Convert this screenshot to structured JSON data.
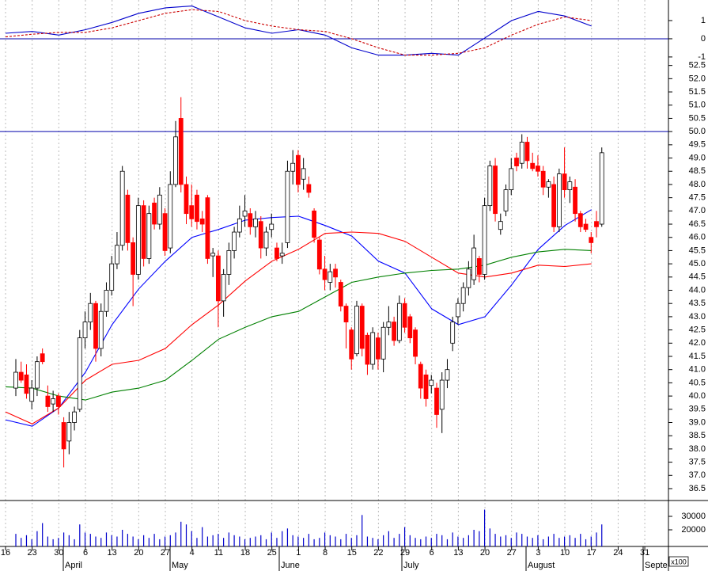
{
  "chart_data": [
    {
      "type": "line",
      "categories": [
        "16",
        "23",
        "30",
        "6",
        "13",
        "20",
        "27",
        "4",
        "11",
        "18",
        "25",
        "1",
        "8",
        "15",
        "22",
        "29",
        "6",
        "13",
        "20",
        "27",
        "3",
        "10",
        "17",
        "24",
        "31"
      ],
      "series": [
        {
          "name": "MACD",
          "color": "#0000cc",
          "dashed": false,
          "values": [
            0.3,
            0.4,
            0.2,
            0.5,
            0.9,
            1.4,
            1.7,
            1.8,
            1.2,
            0.6,
            0.3,
            0.5,
            0.2,
            -0.5,
            -0.9,
            -0.9,
            -0.8,
            -0.9,
            0.05,
            1.0,
            1.5,
            1.25,
            0.7,
            null,
            null
          ]
        },
        {
          "name": "Signal",
          "color": "#cc0000",
          "dashed": true,
          "values": [
            0.1,
            0.25,
            0.35,
            0.35,
            0.6,
            1.0,
            1.4,
            1.6,
            1.5,
            1.0,
            0.7,
            0.5,
            0.4,
            0.0,
            -0.5,
            -0.9,
            -0.9,
            -0.8,
            -0.5,
            0.2,
            0.8,
            1.2,
            1.0,
            null,
            null
          ]
        }
      ],
      "hline": 0,
      "hline_color": "#0000aa",
      "ylim": [
        -1.7,
        2.13
      ],
      "yticks": [
        -1,
        0,
        1
      ]
    },
    {
      "type": "candlestick",
      "categories": [
        "16",
        "23",
        "30",
        "6",
        "13",
        "20",
        "27",
        "4",
        "11",
        "18",
        "25",
        "1",
        "8",
        "15",
        "22",
        "29",
        "6",
        "13",
        "20",
        "27",
        "3",
        "10",
        "17",
        "24",
        "31"
      ],
      "months": [
        "April",
        "May",
        "June",
        "July",
        "August",
        "Septe"
      ],
      "up_color": "#ffffff",
      "down_color": "#ff0000",
      "open": [
        40.3,
        40.9,
        40.8,
        39.8,
        40.3,
        41.6,
        40.0,
        39.7,
        40.0,
        39.0,
        38.3,
        39.0,
        39.5,
        42.2,
        42.8,
        43.5,
        41.8,
        43.2,
        44.0,
        45.0,
        45.7,
        47.6,
        45.8,
        44.6,
        47.2,
        45.2,
        47.3,
        46.5,
        46.9,
        45.6,
        48.0,
        50.5,
        48.0,
        47.2,
        47.6,
        46.7,
        47.5,
        45.3,
        45.3,
        43.6,
        44.6,
        45.5,
        46.2,
        46.8,
        46.9,
        46.4,
        46.6,
        45.6,
        46.3,
        45.6,
        45.3,
        45.8,
        48.5,
        49.1,
        48.2,
        48.0,
        47.0,
        45.9,
        44.8,
        44.3,
        44.8,
        44.3,
        43.4,
        42.5,
        41.6,
        43.4,
        42.3,
        41.2,
        42.2,
        41.4,
        42.6,
        42.8,
        42.1,
        43.5,
        43.0,
        42.5,
        41.2,
        40.8,
        40.4,
        40.3,
        39.5,
        40.6,
        42.0,
        43.0,
        43.5,
        44.1,
        44.4,
        45.2,
        44.6,
        47.2,
        48.7,
        46.3,
        47.0,
        47.8,
        49.0,
        48.8,
        49.6,
        48.8,
        48.7,
        48.5,
        47.9,
        48.0,
        46.4,
        48.4,
        47.8,
        47.9,
        46.9,
        46.5,
        46.0,
        46.6,
        46.5
      ],
      "high": [
        41.4,
        41.3,
        41.2,
        40.6,
        41.5,
        41.8,
        40.4,
        40.2,
        40.1,
        39.2,
        39.4,
        39.6,
        42.5,
        43.2,
        43.9,
        43.6,
        43.5,
        44.3,
        45.3,
        46.2,
        48.7,
        47.8,
        46.0,
        47.5,
        47.4,
        47.2,
        47.5,
        47.9,
        47.1,
        48.5,
        50.4,
        51.3,
        48.3,
        48.0,
        47.8,
        47.0,
        47.6,
        45.6,
        45.5,
        44.8,
        45.8,
        46.4,
        47.2,
        47.6,
        47.1,
        47.0,
        46.8,
        46.4,
        46.9,
        45.8,
        45.8,
        48.9,
        49.3,
        49.3,
        49.0,
        48.3,
        47.1,
        46.0,
        45.3,
        45.0,
        45.0,
        44.4,
        43.5,
        42.6,
        43.6,
        43.5,
        42.4,
        42.6,
        42.4,
        42.8,
        43.4,
        43.0,
        43.8,
        43.7,
        43.1,
        42.6,
        41.3,
        41.0,
        40.8,
        40.5,
        40.9,
        41.4,
        43.0,
        43.7,
        44.3,
        45.1,
        46.1,
        45.3,
        47.5,
        48.9,
        49.0,
        46.9,
        48.0,
        49.0,
        49.2,
        49.9,
        49.8,
        49.2,
        49.1,
        48.7,
        48.2,
        48.3,
        48.6,
        49.4,
        48.3,
        48.2,
        47.0,
        46.7,
        46.2,
        47.0,
        49.4
      ],
      "low": [
        40.0,
        40.5,
        39.9,
        39.5,
        40.0,
        41.2,
        39.4,
        39.4,
        39.3,
        37.3,
        37.8,
        38.7,
        39.4,
        41.8,
        42.5,
        41.3,
        41.5,
        43.0,
        43.8,
        44.8,
        45.5,
        45.5,
        43.4,
        44.4,
        44.9,
        45.0,
        46.3,
        46.3,
        45.3,
        45.4,
        47.9,
        47.7,
        46.5,
        46.4,
        46.3,
        46.2,
        45.0,
        44.5,
        42.6,
        43.0,
        44.2,
        45.2,
        46.0,
        46.4,
        46.1,
        46.0,
        45.2,
        45.3,
        46.0,
        45.1,
        45.0,
        45.6,
        48.0,
        47.7,
        47.8,
        47.5,
        45.8,
        44.6,
        44.0,
        44.0,
        44.1,
        43.2,
        41.8,
        41.0,
        41.5,
        41.5,
        40.8,
        41.0,
        41.0,
        40.9,
        42.3,
        41.9,
        42.0,
        42.4,
        42.0,
        41.2,
        39.9,
        39.6,
        40.1,
        38.8,
        38.6,
        40.3,
        41.7,
        42.7,
        43.2,
        43.8,
        44.2,
        44.3,
        44.4,
        47.0,
        46.6,
        46.1,
        46.8,
        47.6,
        48.5,
        48.6,
        48.6,
        48.5,
        48.3,
        47.6,
        47.5,
        46.2,
        46.2,
        47.5,
        47.3,
        46.6,
        46.2,
        46.2,
        45.4,
        46.0,
        46.4
      ],
      "close": [
        40.9,
        40.6,
        40.1,
        40.3,
        41.3,
        41.3,
        39.6,
        39.9,
        39.6,
        38.0,
        39.0,
        39.4,
        42.2,
        42.8,
        43.5,
        41.8,
        43.2,
        44.0,
        45.0,
        45.7,
        48.5,
        45.8,
        44.6,
        47.2,
        45.2,
        46.9,
        46.5,
        47.6,
        45.5,
        48.0,
        49.8,
        48.0,
        46.9,
        46.7,
        46.6,
        46.5,
        45.2,
        45.4,
        43.6,
        44.6,
        45.5,
        46.2,
        46.7,
        47.0,
        46.4,
        46.7,
        45.6,
        46.2,
        46.5,
        45.2,
        45.4,
        48.5,
        48.8,
        48.0,
        48.6,
        47.7,
        46.0,
        44.8,
        44.4,
        44.7,
        44.5,
        43.4,
        42.8,
        41.4,
        43.4,
        41.8,
        41.2,
        42.4,
        41.4,
        42.6,
        42.8,
        42.1,
        43.5,
        42.6,
        42.2,
        41.5,
        40.3,
        39.9,
        40.6,
        39.3,
        40.6,
        41.0,
        42.8,
        43.5,
        44.1,
        44.8,
        45.6,
        44.6,
        47.2,
        48.7,
        46.9,
        46.6,
        47.8,
        48.6,
        48.7,
        49.6,
        48.9,
        48.6,
        48.5,
        47.9,
        48.1,
        46.4,
        48.4,
        47.8,
        48.1,
        46.9,
        46.4,
        46.3,
        45.8,
        46.4,
        49.2
      ],
      "lines": [
        {
          "name": "MA20",
          "color": "#0000ff",
          "values": [
            39.1,
            38.86,
            39.55,
            40.9,
            42.7,
            44.05,
            45.1,
            46.0,
            46.3,
            46.65,
            46.75,
            46.8,
            46.45,
            46.05,
            45.1,
            44.65,
            43.3,
            42.7,
            43.0,
            44.2,
            45.55,
            46.45,
            47.05,
            null,
            null
          ]
        },
        {
          "name": "MA50",
          "color": "#ff0000",
          "values": [
            39.4,
            38.95,
            39.55,
            40.6,
            41.2,
            41.35,
            41.8,
            42.7,
            43.45,
            44.35,
            45.1,
            45.55,
            46.15,
            46.2,
            46.15,
            45.85,
            45.25,
            44.65,
            44.5,
            44.65,
            44.95,
            44.9,
            45.0,
            null,
            null
          ]
        },
        {
          "name": "MA100",
          "color": "#008000",
          "values": [
            40.35,
            40.3,
            40.0,
            39.85,
            40.15,
            40.3,
            40.6,
            41.35,
            42.15,
            42.6,
            43.0,
            43.2,
            43.75,
            44.3,
            44.5,
            44.65,
            44.75,
            44.8,
            44.95,
            45.25,
            45.45,
            45.55,
            45.5,
            null,
            null
          ]
        }
      ],
      "hline": 50,
      "hline_color": "#0000aa",
      "ylim": [
        36.05,
        52.34
      ],
      "yticks": [
        36.5,
        {
          "value": 37,
          "label": "37.0"
        },
        37.5,
        {
          "value": 38,
          "label": "38.0"
        },
        38.5,
        {
          "value": 39,
          "label": "39.0"
        },
        39.5,
        {
          "value": 40,
          "label": "40.0"
        },
        40.5,
        {
          "value": 41,
          "label": "41.0"
        },
        41.5,
        {
          "value": 42,
          "label": "42.0"
        },
        42.5,
        {
          "value": 43,
          "label": "43.0"
        },
        43.5,
        {
          "value": 44,
          "label": "44.0"
        },
        44.5,
        {
          "value": 45,
          "label": "45.0"
        },
        45.5,
        {
          "value": 46,
          "label": "46.0"
        },
        46.5,
        {
          "value": 47,
          "label": "47.0"
        },
        47.5,
        {
          "value": 48,
          "label": "48.0"
        },
        48.5,
        {
          "value": 49,
          "label": "49.0"
        },
        49.5,
        {
          "value": 50,
          "label": "50.0"
        },
        50.5,
        {
          "value": 51,
          "label": "51.0"
        },
        51.5,
        {
          "value": 52,
          "label": "52.0"
        },
        52.5
      ]
    },
    {
      "type": "bar",
      "color": "#0000cc",
      "unit_label": "x100",
      "values": [
        17000,
        14000,
        16000,
        13000,
        19000,
        25000,
        15000,
        13000,
        14000,
        18000,
        16000,
        13000,
        24000,
        18000,
        17000,
        15000,
        14000,
        18000,
        16000,
        15000,
        20000,
        17000,
        15000,
        13000,
        16000,
        14000,
        17000,
        13000,
        15000,
        16000,
        18000,
        26000,
        24000,
        19000,
        14000,
        22000,
        15000,
        16000,
        17000,
        14000,
        18000,
        16000,
        15000,
        13000,
        14000,
        15000,
        16000,
        13000,
        18000,
        14000,
        19000,
        21000,
        16000,
        15000,
        14000,
        17000,
        13000,
        14000,
        18000,
        16000,
        15000,
        13000,
        17000,
        14000,
        16000,
        31000,
        15000,
        14000,
        13000,
        16000,
        19000,
        14000,
        17000,
        22000,
        16000,
        14000,
        13000,
        15000,
        14000,
        17000,
        16000,
        13000,
        18000,
        15000,
        14000,
        16000,
        20000,
        19000,
        35000,
        21000,
        17000,
        15000,
        16000,
        14000,
        18000,
        17000,
        15000,
        14000,
        16000,
        13000,
        15000,
        17000,
        14000,
        15000,
        16000,
        14000,
        17000,
        13000,
        15000,
        18000,
        24000
      ],
      "ylim": [
        7650,
        41750
      ],
      "yticks": [
        20000,
        30000
      ]
    }
  ]
}
